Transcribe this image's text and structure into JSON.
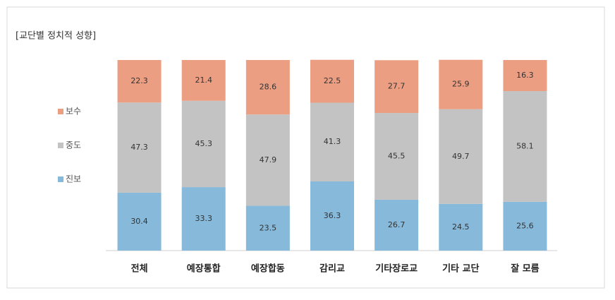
{
  "chart_data": {
    "type": "stacked-bar",
    "title": "[교단별 정치적 성향]",
    "categories": [
      "전체",
      "예장통합",
      "예장합동",
      "감리교",
      "기타장로교",
      "기타 교단",
      "잘 모름"
    ],
    "series": [
      {
        "name": "진보",
        "color": "#86b9da",
        "values": [
          30.4,
          33.3,
          23.5,
          36.3,
          26.7,
          24.5,
          25.6
        ]
      },
      {
        "name": "중도",
        "color": "#c3c3c3",
        "values": [
          47.3,
          45.3,
          47.9,
          41.3,
          45.5,
          49.7,
          58.1
        ]
      },
      {
        "name": "보수",
        "color": "#ec9e82",
        "values": [
          22.3,
          21.4,
          28.6,
          22.5,
          27.7,
          25.9,
          16.3
        ]
      }
    ],
    "ylim": [
      0,
      100
    ],
    "legend": "left"
  }
}
